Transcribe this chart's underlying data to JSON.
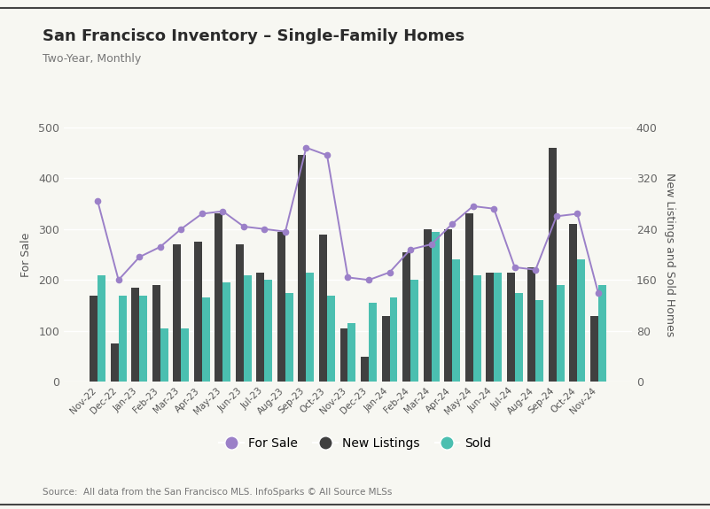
{
  "months": [
    "Nov-22",
    "Dec-22",
    "Jan-23",
    "Feb-23",
    "Mar-23",
    "Apr-23",
    "May-23",
    "Jun-23",
    "Jul-23",
    "Aug-23",
    "Sep-23",
    "Oct-23",
    "Nov-23",
    "Dec-23",
    "Jan-24",
    "Feb-24",
    "Mar-24",
    "Apr-24",
    "May-24",
    "Jun-24",
    "Jul-24",
    "Aug-24",
    "Sep-24",
    "Oct-24",
    "Nov-24"
  ],
  "for_sale": [
    355,
    200,
    245,
    265,
    300,
    330,
    335,
    305,
    300,
    295,
    460,
    445,
    205,
    200,
    215,
    260,
    270,
    310,
    345,
    340,
    225,
    220,
    325,
    330,
    175
  ],
  "new_listings": [
    170,
    75,
    185,
    190,
    270,
    275,
    330,
    270,
    215,
    295,
    445,
    290,
    105,
    50,
    130,
    255,
    300,
    300,
    330,
    215,
    215,
    225,
    460,
    310,
    130
  ],
  "sold": [
    210,
    170,
    170,
    105,
    105,
    165,
    195,
    210,
    200,
    175,
    215,
    170,
    115,
    155,
    165,
    200,
    295,
    240,
    210,
    215,
    175,
    160,
    190,
    240,
    190
  ],
  "for_sale_color": "#9b80c8",
  "new_listings_color": "#404040",
  "sold_color": "#4bbfb0",
  "title": "San Francisco Inventory – Single-Family Homes",
  "subtitle": "Two-Year, Monthly",
  "ylabel_left": "For Sale",
  "ylabel_right": "New Listings and Sold Homes",
  "source": "Source:  All data from the San Francisco MLS. InfoSparks © All Source MLSs",
  "ylim_left": [
    0,
    500
  ],
  "ylim_right": [
    0,
    400
  ],
  "yticks_left": [
    0,
    100,
    200,
    300,
    400,
    500
  ],
  "yticks_right": [
    0,
    80,
    160,
    240,
    320,
    400
  ],
  "bg_color": "#f7f7f2"
}
